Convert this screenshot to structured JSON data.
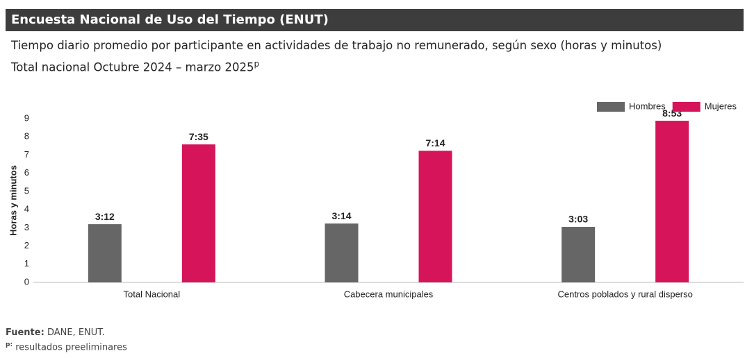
{
  "chart_data": {
    "type": "bar",
    "title": "Encuesta Nacional de Uso del Tiempo (ENUT)",
    "subtitle": [
      "Tiempo diario promedio por participante en actividades de trabajo no remunerado, según sexo (horas y minutos)",
      "Total nacional Octubre 2024 – marzo 2025"
    ],
    "subtitle_superscript": "p",
    "y_label": "Horas y minutos",
    "categories": [
      "Total Nacional",
      "Cabecera municipales",
      "Centros poblados y rural disperso"
    ],
    "series": [
      {
        "name": "Hombres",
        "color": "#666666",
        "values": [
          3.2,
          3.233333,
          3.05
        ],
        "value_labels": [
          "3:12",
          "3:14",
          "3:03"
        ]
      },
      {
        "name": "Mujeres",
        "color": "#d5145a",
        "values": [
          7.583333,
          7.233333,
          8.883333
        ],
        "value_labels": [
          "7:35",
          "7:14",
          "8:53"
        ]
      }
    ],
    "ylim": [
      0,
      9
    ],
    "yticks": [
      0,
      1,
      2,
      3,
      4,
      5,
      6,
      7,
      8,
      9
    ],
    "grid": false,
    "legend": "top-right",
    "source_label": "Fuente:",
    "source": "DANE, ENUT.",
    "note_marker": "p:",
    "note": "resultados preeliminares"
  }
}
